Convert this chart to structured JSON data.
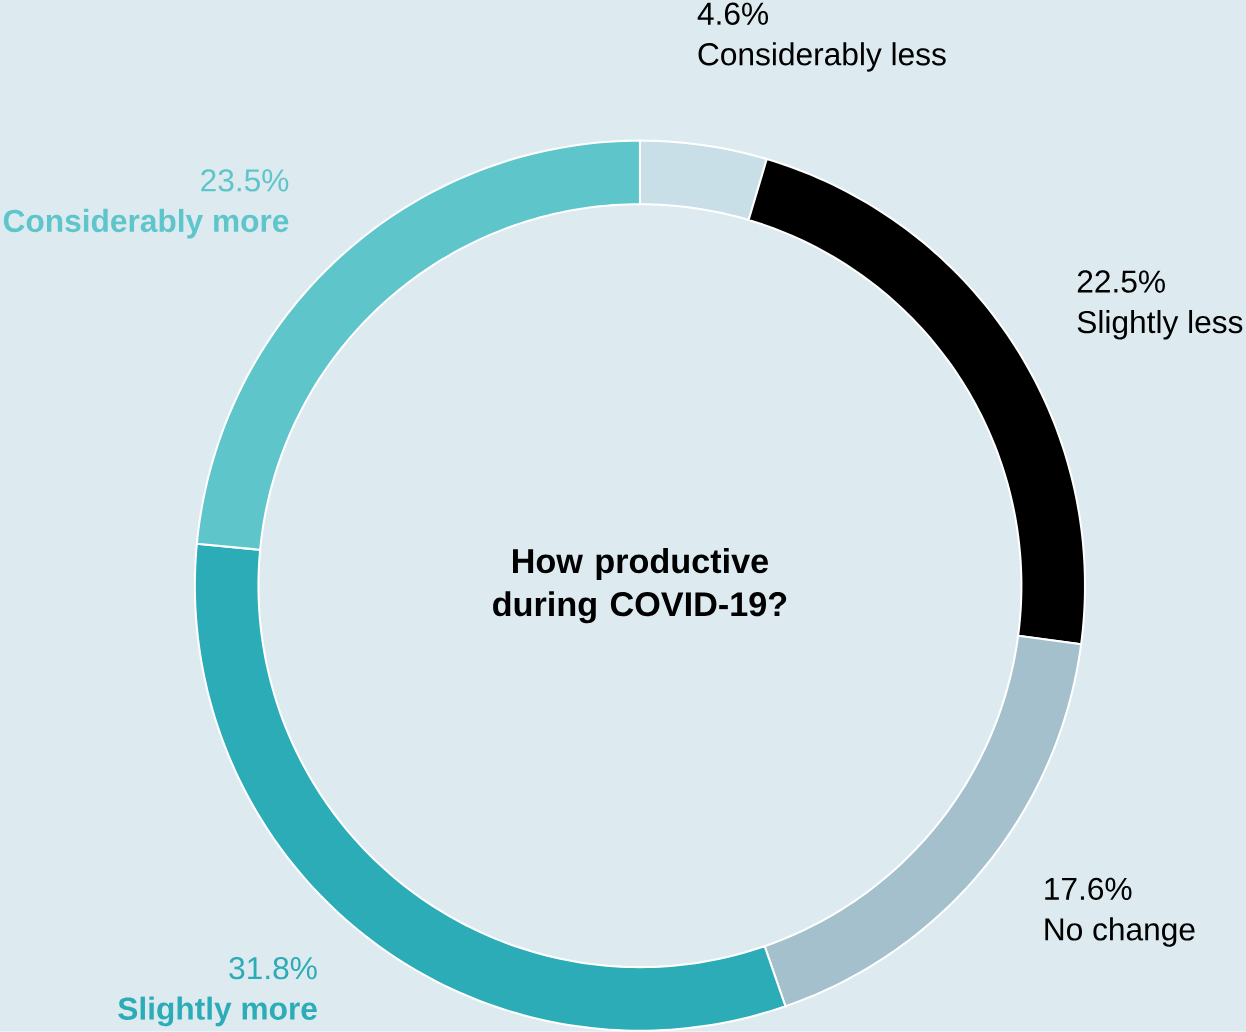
{
  "chart_data": {
    "type": "donut",
    "title": "How productive during COVID-19?",
    "categories": [
      "Considerably less",
      "Slightly less",
      "No change",
      "Slightly more",
      "Considerably more"
    ],
    "values": [
      4.6,
      22.5,
      17.6,
      31.8,
      23.5
    ],
    "value_labels": [
      "4.6%",
      "22.5%",
      "17.6%",
      "31.8%",
      "23.5%"
    ],
    "colors": [
      "#c9dfe8",
      "#000000",
      "#a3c0cc",
      "#2cacb6",
      "#5ec5ca"
    ]
  }
}
